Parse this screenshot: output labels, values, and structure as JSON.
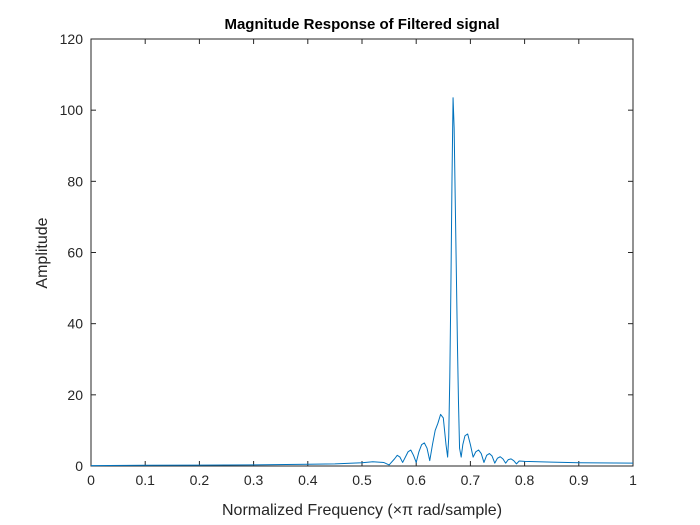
{
  "chart_data": {
    "type": "line",
    "title": "Magnitude Response of Filtered signal",
    "xlabel": "Normalized Frequency (×π rad/sample)",
    "ylabel": "Amplitude",
    "xlim": [
      0,
      1
    ],
    "ylim": [
      0,
      120
    ],
    "xticks": [
      0,
      0.1,
      0.2,
      0.3,
      0.4,
      0.5,
      0.6,
      0.7,
      0.8,
      0.9,
      1
    ],
    "xtick_labels": [
      "0",
      "0.1",
      "0.2",
      "0.3",
      "0.4",
      "0.5",
      "0.6",
      "0.7",
      "0.8",
      "0.9",
      "1"
    ],
    "yticks": [
      0,
      20,
      40,
      60,
      80,
      100,
      120
    ],
    "ytick_labels": [
      "0",
      "20",
      "40",
      "60",
      "80",
      "100",
      "120"
    ],
    "grid": false,
    "line_color": "#0072bd",
    "series": [
      {
        "x": [
          0,
          0.1,
          0.2,
          0.3,
          0.4,
          0.45,
          0.5,
          0.52,
          0.54,
          0.55,
          0.56,
          0.565,
          0.57,
          0.575,
          0.58,
          0.585,
          0.59,
          0.595,
          0.6,
          0.605,
          0.61,
          0.615,
          0.62,
          0.625,
          0.63,
          0.635,
          0.64,
          0.645,
          0.65,
          0.655,
          0.658,
          0.66,
          0.662,
          0.664,
          0.666,
          0.668,
          0.67,
          0.672,
          0.674,
          0.676,
          0.678,
          0.68,
          0.683,
          0.686,
          0.69,
          0.695,
          0.7,
          0.705,
          0.71,
          0.715,
          0.72,
          0.725,
          0.73,
          0.735,
          0.74,
          0.745,
          0.75,
          0.755,
          0.76,
          0.765,
          0.77,
          0.775,
          0.78,
          0.785,
          0.79,
          0.8,
          0.85,
          0.9,
          1
        ],
        "y": [
          0.1,
          0.2,
          0.25,
          0.3,
          0.5,
          0.6,
          0.9,
          1.2,
          1.0,
          0.3,
          2.0,
          3.0,
          2.5,
          1.0,
          2.5,
          4.0,
          4.5,
          3.0,
          1.0,
          4.0,
          6.0,
          6.5,
          5.0,
          1.5,
          6.0,
          10.0,
          12.0,
          14.5,
          13.5,
          6.0,
          2.5,
          8.0,
          25.0,
          50.0,
          80.0,
          103.5,
          95.0,
          75.0,
          55.0,
          35.0,
          18.0,
          5.0,
          2.5,
          6.0,
          8.5,
          9.0,
          6.0,
          2.5,
          4.0,
          4.5,
          3.5,
          1.0,
          3.0,
          3.5,
          2.8,
          0.8,
          2.2,
          2.6,
          2.0,
          0.8,
          1.8,
          2.0,
          1.5,
          0.6,
          1.4,
          1.3,
          1.1,
          0.9,
          0.8
        ]
      }
    ]
  }
}
